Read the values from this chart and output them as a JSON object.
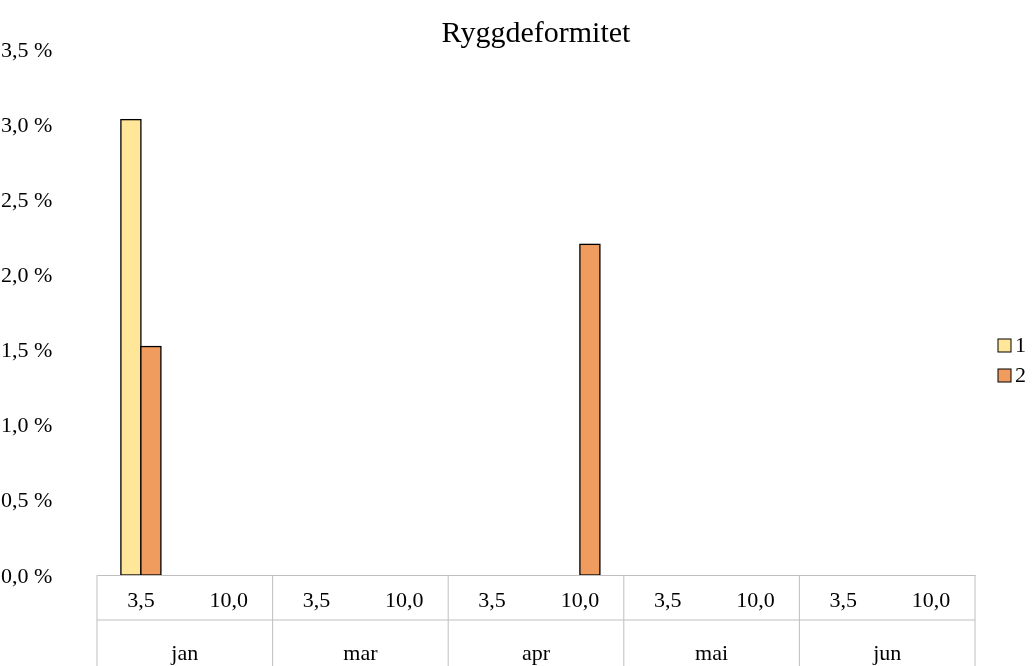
{
  "chart_data": {
    "type": "bar",
    "title": "Ryggdeformitet",
    "categories": [
      "3,5",
      "10,0",
      "3,5",
      "10,0",
      "3,5",
      "10,0",
      "3,5",
      "10,0",
      "3,5",
      "10,0"
    ],
    "annotations": [
      "jan",
      "mar",
      "apr",
      "mai",
      "jun"
    ],
    "series": [
      {
        "name": "1",
        "color": "#ffe699",
        "values": [
          3.03,
          0,
          0,
          0,
          0,
          0,
          0,
          0,
          0,
          0
        ]
      },
      {
        "name": "2",
        "color": "#f19c5f",
        "values": [
          1.52,
          0,
          0,
          0,
          0,
          2.2,
          0,
          0,
          0,
          0
        ]
      }
    ],
    "ylim": [
      0,
      3.5
    ],
    "yticks": [
      {
        "value": 0,
        "label": "0,0 %"
      },
      {
        "value": 0.5,
        "label": "0,5 %"
      },
      {
        "value": 1,
        "label": "1,0 %"
      },
      {
        "value": 1.5,
        "label": "1,5 %"
      },
      {
        "value": 2,
        "label": "2,0 %"
      },
      {
        "value": 2.5,
        "label": "2,5 %"
      },
      {
        "value": 3,
        "label": "3,0 %"
      },
      {
        "value": 3.5,
        "label": "3,5 %"
      }
    ],
    "grid": false,
    "legend": "right"
  }
}
